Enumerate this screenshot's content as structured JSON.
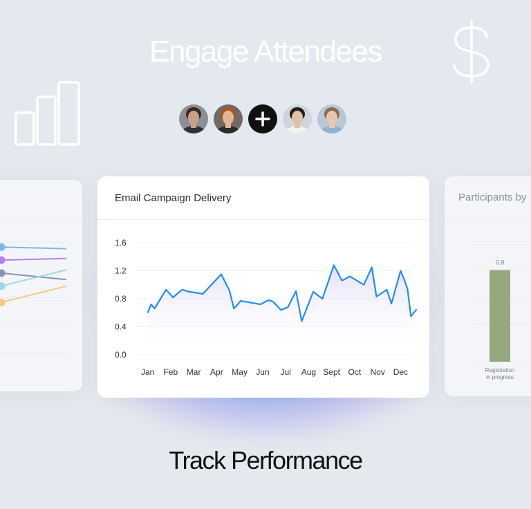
{
  "headline": "Engage Attendees",
  "tagline": "Track Performance",
  "icons": {
    "left": "bar-chart-icon",
    "right": "dollar-icon",
    "add": "plus-icon"
  },
  "avatars": [
    {
      "name": "avatar-man-beard",
      "skin": "#c9a08a",
      "hair": "#3b2a22",
      "shirt": "#2e3136",
      "bg": "#8c8f93"
    },
    {
      "name": "avatar-woman-redhair",
      "skin": "#e2b596",
      "hair": "#b2502a",
      "shirt": "#2b2b2b",
      "bg": "#6f6a64"
    },
    {
      "name": "add-person",
      "plus": true
    },
    {
      "name": "avatar-man-glasses",
      "skin": "#e0c0a6",
      "hair": "#22201f",
      "shirt": "#f2f2f2",
      "bg": "#cfd5dc"
    },
    {
      "name": "avatar-woman-blue",
      "skin": "#e8c6b0",
      "hair": "#8a6a50",
      "shirt": "#8fb3cf",
      "bg": "#b7c9d6"
    }
  ],
  "main_card": {
    "title": "Email Campaign Delivery"
  },
  "right_card": {
    "title": "Participants by"
  },
  "chart_data": [
    {
      "type": "line",
      "title": "Email Campaign Delivery",
      "categories": [
        "Jan",
        "Feb",
        "Mar",
        "Apr",
        "May",
        "Jun",
        "Jul",
        "Aug",
        "Sept",
        "Oct",
        "Nov",
        "Dec"
      ],
      "yticks": [
        "1.6",
        "1.2",
        "0.8",
        "0.4",
        "0.0"
      ],
      "ylim": [
        0,
        1.6
      ],
      "color": "#1f8ef1",
      "x": [
        0,
        0.15,
        0.3,
        0.8,
        1.1,
        1.5,
        1.8,
        2.4,
        3.2,
        3.55,
        3.75,
        4.05,
        4.9,
        5.25,
        5.45,
        5.8,
        6.1,
        6.45,
        6.7,
        7.2,
        7.6,
        8.1,
        8.45,
        8.8,
        9.4,
        9.75,
        9.95,
        10.4,
        10.6,
        11.0,
        11.15,
        11.3,
        11.45,
        11.7
      ],
      "y": [
        0.6,
        0.72,
        0.66,
        0.93,
        0.82,
        0.93,
        0.9,
        0.87,
        1.15,
        0.92,
        0.66,
        0.77,
        0.72,
        0.78,
        0.76,
        0.64,
        0.68,
        0.91,
        0.48,
        0.9,
        0.8,
        1.28,
        1.06,
        1.12,
        1.0,
        1.25,
        0.83,
        0.93,
        0.73,
        1.2,
        1.08,
        0.94,
        0.55,
        0.65
      ],
      "grid": true
    },
    {
      "type": "line",
      "lines": [
        {
          "color": "#7cb7ef",
          "y": [
            0.82,
            0.81
          ]
        },
        {
          "color": "#b67ef0",
          "y": [
            0.74,
            0.75
          ]
        },
        {
          "color": "#8494b6",
          "y": [
            0.66,
            0.62
          ]
        },
        {
          "color": "#98dbe8",
          "y": [
            0.58,
            0.68
          ]
        },
        {
          "color": "#f6c785",
          "y": [
            0.48,
            0.58
          ]
        }
      ],
      "ylim": [
        0,
        1
      ]
    },
    {
      "type": "bar",
      "categories": [
        "Registration in progress"
      ],
      "category_lines": [
        "Registration",
        "in progress"
      ],
      "values": [
        0.9
      ],
      "labels": [
        "0.9"
      ],
      "color": "#97a77f",
      "ylim": [
        0,
        1.4
      ]
    }
  ]
}
